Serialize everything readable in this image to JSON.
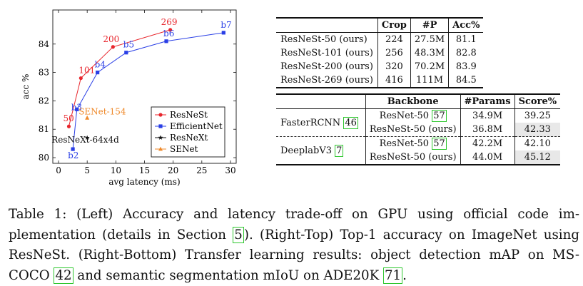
{
  "chart_data": {
    "type": "scatter",
    "xlabel": "avg latency (ms)",
    "ylabel": "acc %",
    "xlim": [
      -1,
      31
    ],
    "ylim": [
      79.8,
      85.2
    ],
    "xticks": [
      0,
      5,
      10,
      15,
      20,
      25,
      30
    ],
    "yticks": [
      80,
      81,
      82,
      83,
      84
    ],
    "grid": false,
    "legend_position": "bottom-right",
    "series": [
      {
        "name": "ResNeSt",
        "color": "#e8262d",
        "marker": "circle",
        "points": [
          {
            "x": 1.8,
            "y": 81.1,
            "label": "50"
          },
          {
            "x": 3.9,
            "y": 82.8,
            "label": "101"
          },
          {
            "x": 9.5,
            "y": 83.9,
            "label": "200"
          },
          {
            "x": 19.5,
            "y": 84.5,
            "label": "269"
          }
        ]
      },
      {
        "name": "EfficientNet",
        "color": "#2a3fe6",
        "marker": "square",
        "points": [
          {
            "x": 2.5,
            "y": 80.3,
            "label": "b2"
          },
          {
            "x": 3.2,
            "y": 81.7,
            "label": "b3"
          },
          {
            "x": 6.8,
            "y": 83.0,
            "label": "b4"
          },
          {
            "x": 11.8,
            "y": 83.7,
            "label": "b5"
          },
          {
            "x": 18.8,
            "y": 84.1,
            "label": "b6"
          },
          {
            "x": 28.8,
            "y": 84.4,
            "label": "b7"
          }
        ]
      },
      {
        "name": "ResNeXt",
        "color": "#111111",
        "marker": "star",
        "points": [
          {
            "x": 5.0,
            "y": 80.7,
            "label": "ResNeXt-64x4d"
          }
        ]
      },
      {
        "name": "SENet",
        "color": "#ef8a2b",
        "marker": "triangle",
        "points": [
          {
            "x": 5.0,
            "y": 81.4,
            "label": "SENet-154"
          }
        ]
      }
    ]
  },
  "top_table": {
    "headers": [
      "",
      "Crop",
      "#P",
      "Acc%"
    ],
    "rows": [
      {
        "model": "ResNeSt-50 (ours)",
        "crop": "224",
        "params": "27.5M",
        "acc": "81.1"
      },
      {
        "model": "ResNeSt-101 (ours)",
        "crop": "256",
        "params": "48.3M",
        "acc": "82.8"
      },
      {
        "model": "ResNeSt-200 (ours)",
        "crop": "320",
        "params": "70.2M",
        "acc": "83.9"
      },
      {
        "model": "ResNeSt-269 (ours)",
        "crop": "416",
        "params": "111M",
        "acc": "84.5"
      }
    ]
  },
  "bottom_table": {
    "headers": [
      "",
      "Backbone",
      "#Params",
      "Score%"
    ],
    "groups": [
      {
        "method": "FasterRCNN",
        "cite": "46",
        "rows": [
          {
            "backbone": "ResNet-50",
            "backbone_cite": "57",
            "params": "34.9M",
            "score": "39.25",
            "highlight": false
          },
          {
            "backbone": "ResNeSt-50 (ours)",
            "backbone_cite": "",
            "params": "36.8M",
            "score": "42.33",
            "highlight": true
          }
        ]
      },
      {
        "method": "DeeplabV3",
        "cite": "7",
        "rows": [
          {
            "backbone": "ResNet-50",
            "backbone_cite": "57",
            "params": "42.2M",
            "score": "42.10",
            "highlight": false
          },
          {
            "backbone": "ResNeSt-50 (ours)",
            "backbone_cite": "",
            "params": "44.0M",
            "score": "45.12",
            "highlight": true
          }
        ]
      }
    ]
  },
  "caption": {
    "t1": "Table 1: (Left) Accuracy and latency trade-off on GPU using official code im-plementation (details in Section ",
    "r1": "5",
    "t2": "). (Right-Top) Top-1 accuracy on ImageNet using ResNeSt. (Right-Bottom) Transfer learning results: object detection mAP on MS-COCO ",
    "r2": "42",
    "t3": " and semantic segmentation mIoU on ADE20K ",
    "r3": "71",
    "t4": "."
  }
}
